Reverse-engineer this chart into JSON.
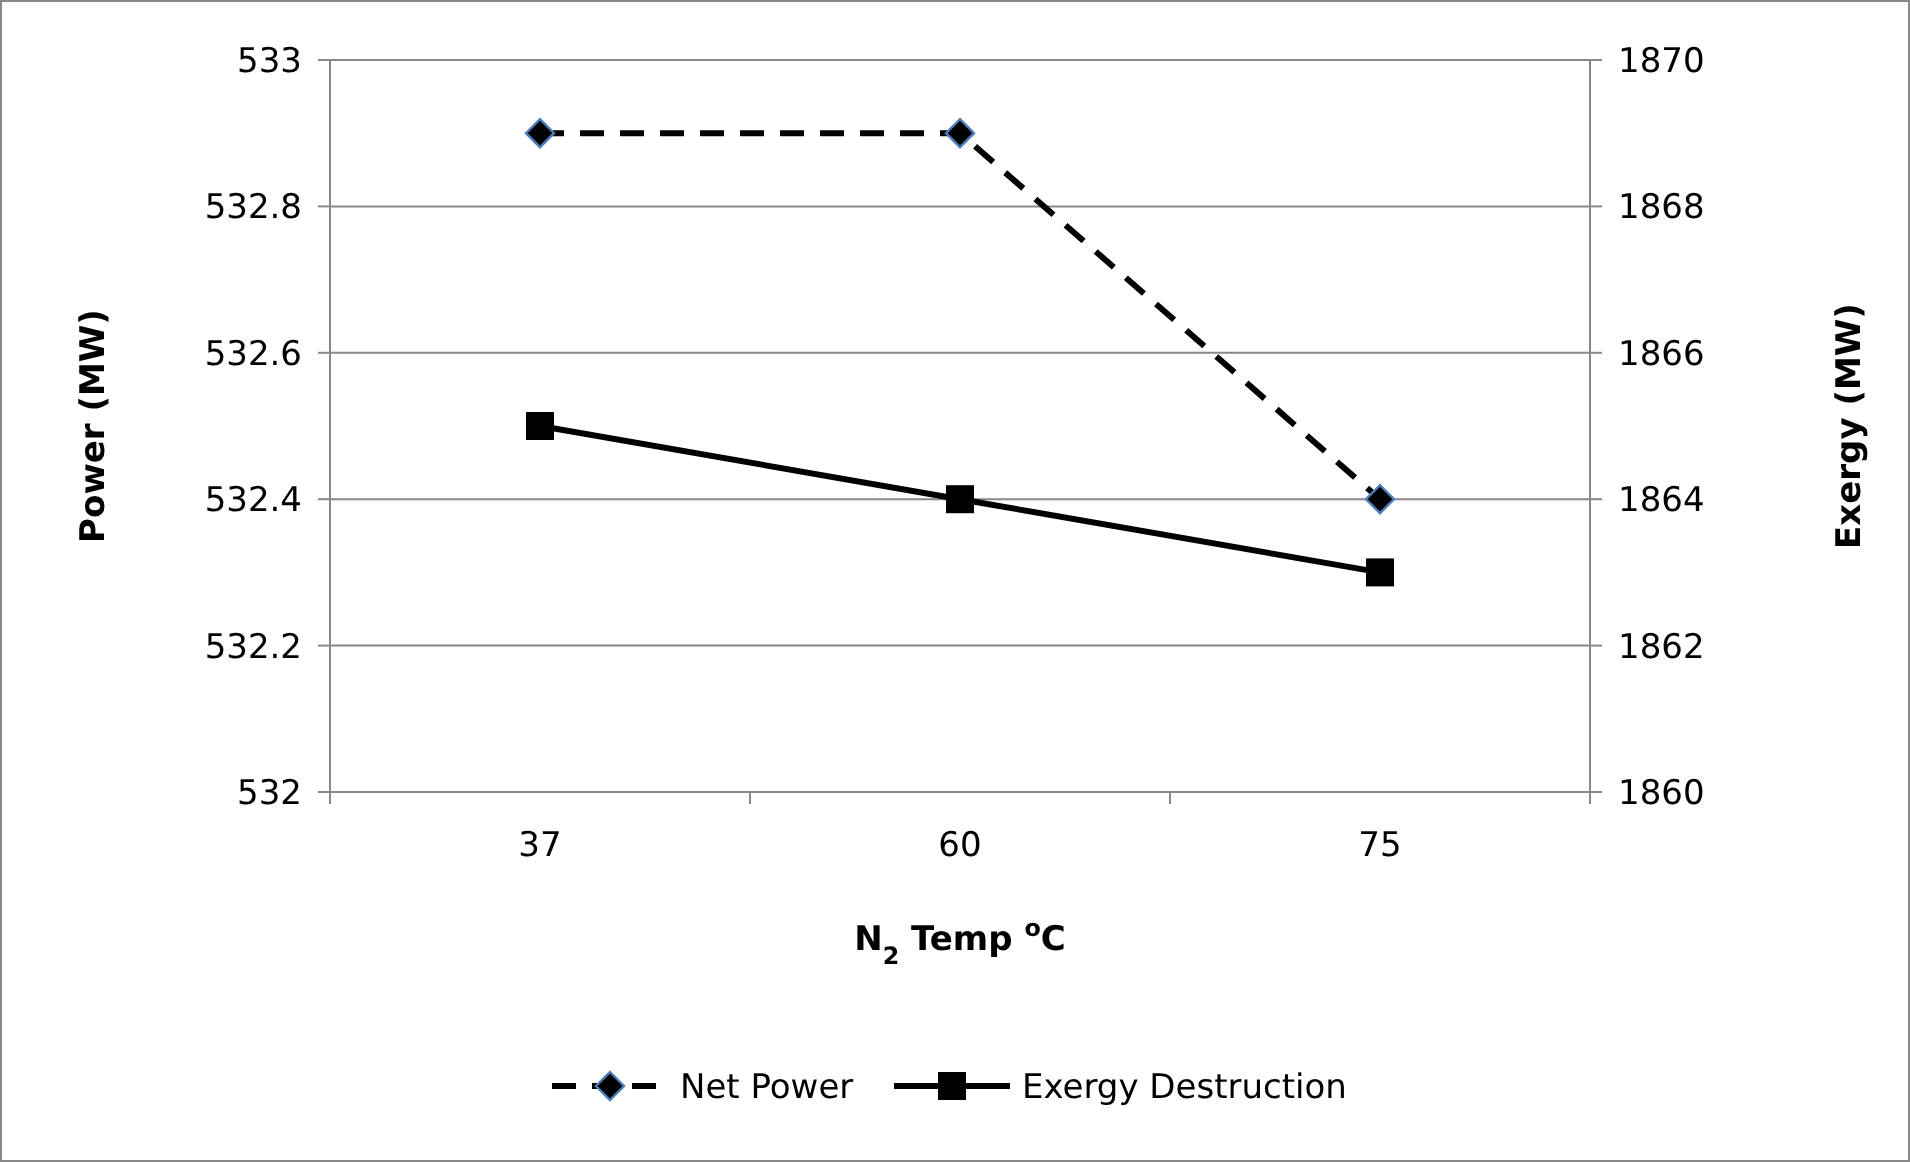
{
  "chart_data": {
    "type": "line",
    "xlabel": "N$_{2}$ Temp $^{o}$C",
    "ylabel": "Power (MW)",
    "y2label": "Exergy (MW)",
    "categories": [
      "37",
      "60",
      "75"
    ],
    "series": [
      {
        "name": "Net Power",
        "color": "#000000",
        "values": [
          532.9,
          532.9,
          532.4
        ],
        "marker": "diamond",
        "line_style": "dashed"
      },
      {
        "name": "Exergy Destruction",
        "color": "#000000",
        "values": [
          1865,
          1864,
          1863
        ],
        "axis": "y2",
        "marker": "square",
        "line_style": "solid"
      }
    ],
    "ylim": [
      532,
      533
    ],
    "yticks": [
      532,
      532.2,
      532.4,
      532.6,
      532.8,
      533
    ],
    "y2lim": [
      1860,
      1870
    ],
    "y2ticks": [
      1860,
      1862,
      1864,
      1866,
      1868,
      1870
    ],
    "grid": "y",
    "legend": "bottom"
  }
}
